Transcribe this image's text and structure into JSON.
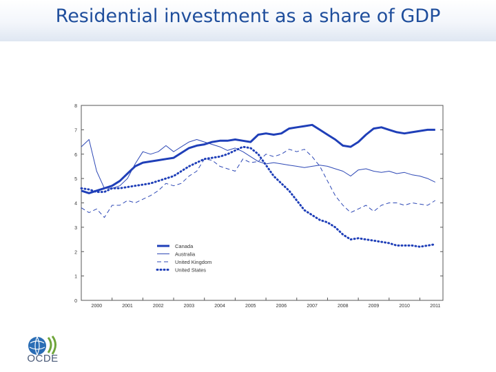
{
  "page": {
    "title": "Residential investment as a share of GDP"
  },
  "logo": {
    "text": "OCDE",
    "colors": {
      "globe": "#2a6db5",
      "arc": "#6fa53b"
    }
  },
  "chart_data": {
    "type": "line",
    "title": "Residential investment as a share of GDP",
    "xlabel": "",
    "ylabel": "",
    "xlim": [
      2000,
      2011.75
    ],
    "ylim": [
      0,
      8
    ],
    "yticks": [
      0,
      1,
      2,
      3,
      4,
      5,
      6,
      7,
      8
    ],
    "xticks": [
      "2000",
      "2001",
      "2002",
      "2003",
      "2004",
      "2005",
      "2006",
      "2007",
      "2008",
      "2009",
      "2010",
      "2011"
    ],
    "legend_position": "lower-center",
    "x": [
      2000.0,
      2000.25,
      2000.5,
      2000.75,
      2001.0,
      2001.25,
      2001.5,
      2001.75,
      2002.0,
      2002.25,
      2002.5,
      2002.75,
      2003.0,
      2003.25,
      2003.5,
      2003.75,
      2004.0,
      2004.25,
      2004.5,
      2004.75,
      2005.0,
      2005.25,
      2005.5,
      2005.75,
      2006.0,
      2006.25,
      2006.5,
      2006.75,
      2007.0,
      2007.25,
      2007.5,
      2007.75,
      2008.0,
      2008.25,
      2008.5,
      2008.75,
      2009.0,
      2009.25,
      2009.5,
      2009.75,
      2010.0,
      2010.25,
      2010.5,
      2010.75,
      2011.0,
      2011.25,
      2011.5
    ],
    "series": [
      {
        "name": "Canada",
        "color": "#1f3fb8",
        "width": 3,
        "dash": "",
        "values": [
          4.5,
          4.4,
          4.5,
          4.6,
          4.7,
          4.9,
          5.2,
          5.5,
          5.65,
          5.7,
          5.75,
          5.8,
          5.85,
          6.05,
          6.25,
          6.35,
          6.4,
          6.5,
          6.55,
          6.55,
          6.6,
          6.55,
          6.5,
          6.8,
          6.85,
          6.8,
          6.85,
          7.05,
          7.1,
          7.15,
          7.2,
          7.0,
          6.8,
          6.6,
          6.35,
          6.3,
          6.5,
          6.8,
          7.05,
          7.1,
          7.0,
          6.9,
          6.85,
          6.9,
          6.95,
          7.0,
          7.0
        ]
      },
      {
        "name": "Australia",
        "color": "#2c47b5",
        "width": 1,
        "dash": "",
        "values": [
          6.3,
          6.6,
          5.3,
          4.6,
          4.6,
          4.7,
          5.0,
          5.6,
          6.1,
          6.0,
          6.1,
          6.35,
          6.1,
          6.3,
          6.5,
          6.6,
          6.5,
          6.4,
          6.3,
          6.15,
          6.25,
          6.1,
          5.9,
          5.7,
          5.6,
          5.65,
          5.6,
          5.55,
          5.5,
          5.45,
          5.5,
          5.55,
          5.5,
          5.4,
          5.3,
          5.1,
          5.35,
          5.4,
          5.3,
          5.25,
          5.3,
          5.2,
          5.25,
          5.15,
          5.1,
          5.0,
          4.85
        ]
      },
      {
        "name": "United Kingdom",
        "color": "#2c47b5",
        "width": 1,
        "dash": "6,4",
        "values": [
          3.8,
          3.6,
          3.75,
          3.4,
          3.9,
          3.9,
          4.1,
          4.0,
          4.15,
          4.3,
          4.5,
          4.8,
          4.7,
          4.8,
          5.1,
          5.3,
          5.8,
          5.75,
          5.5,
          5.4,
          5.3,
          5.8,
          5.65,
          5.7,
          6.0,
          5.9,
          6.0,
          6.2,
          6.1,
          6.2,
          5.9,
          5.5,
          4.9,
          4.3,
          3.9,
          3.6,
          3.75,
          3.9,
          3.65,
          3.9,
          4.0,
          4.0,
          3.9,
          4.0,
          3.95,
          3.9,
          4.1
        ]
      },
      {
        "name": "United States",
        "color": "#1f3fb8",
        "width": 3,
        "dash": "1,4",
        "values": [
          4.6,
          4.55,
          4.45,
          4.45,
          4.6,
          4.6,
          4.65,
          4.7,
          4.75,
          4.8,
          4.9,
          5.0,
          5.1,
          5.3,
          5.5,
          5.65,
          5.8,
          5.85,
          5.9,
          6.0,
          6.15,
          6.3,
          6.25,
          6.0,
          5.55,
          5.1,
          4.8,
          4.5,
          4.1,
          3.7,
          3.5,
          3.3,
          3.2,
          3.0,
          2.7,
          2.5,
          2.55,
          2.5,
          2.45,
          2.4,
          2.35,
          2.25,
          2.25,
          2.25,
          2.2,
          2.25,
          2.3
        ]
      }
    ]
  }
}
